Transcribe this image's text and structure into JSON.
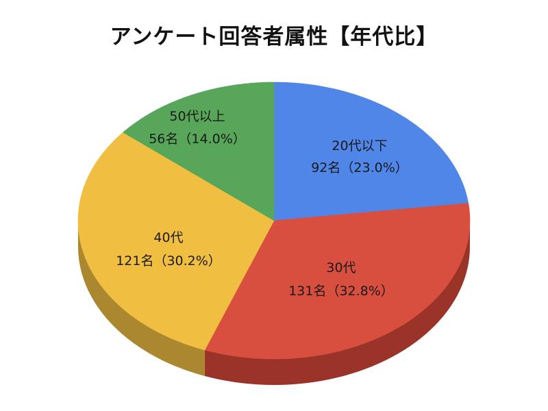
{
  "chart_data": {
    "type": "pie",
    "title": "アンケート回答者属性【年代比】",
    "slices": [
      {
        "label": "20代以下",
        "count_text": "92名（23.0%）",
        "count": 92,
        "percent": 23.0,
        "color": "#4f86e8",
        "side_color": "#3a66b5"
      },
      {
        "label": "30代",
        "count_text": "131名（32.8%）",
        "count": 131,
        "percent": 32.8,
        "color": "#d84f3f",
        "side_color": "#9a3328"
      },
      {
        "label": "40代",
        "count_text": "121名（30.2%）",
        "count": 121,
        "percent": 30.2,
        "color": "#f0be41",
        "side_color": "#ab8730"
      },
      {
        "label": "50代以上",
        "count_text": "56名（14.0%）",
        "count": 56,
        "percent": 14.0,
        "color": "#57a65a",
        "side_color": "#3d773f"
      }
    ],
    "legend": "none",
    "style": "3d-pie"
  }
}
